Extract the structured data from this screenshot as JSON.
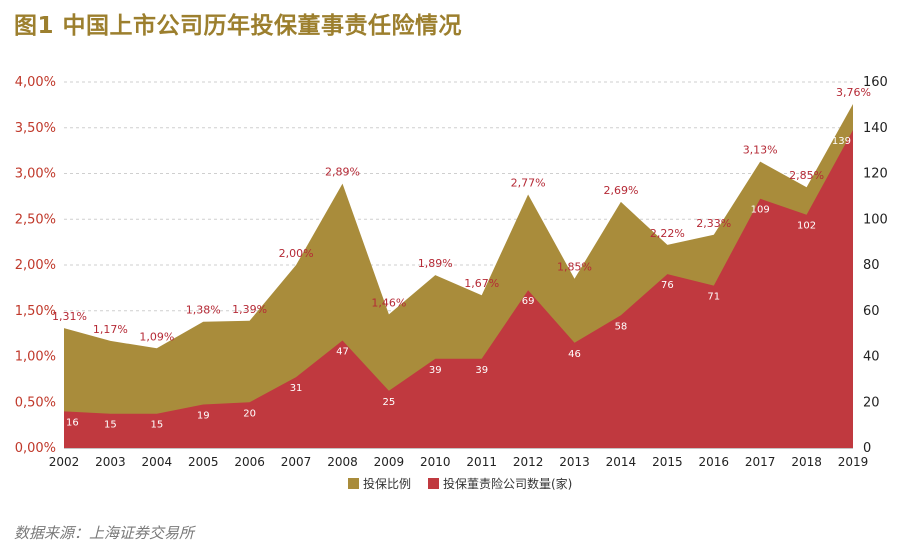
{
  "title": "图1 中国上市公司历年投保董事责任险情况",
  "source": "数据来源：上海证券交易所",
  "colors": {
    "ratio": "#a98c3b",
    "count": "#c0393f",
    "ratio_label": "#b52a36",
    "count_label": "#ffffff",
    "title": "#9c7f2e"
  },
  "chart_data": {
    "type": "area",
    "title": "图1 中国上市公司历年投保董事责任险情况",
    "x": [
      "2002",
      "2003",
      "2004",
      "2005",
      "2006",
      "2007",
      "2008",
      "2009",
      "2010",
      "2011",
      "2012",
      "2013",
      "2014",
      "2015",
      "2016",
      "2017",
      "2018",
      "2019"
    ],
    "series": [
      {
        "name": "投保比例",
        "axis": "left",
        "values": [
          1.31,
          1.17,
          1.09,
          1.38,
          1.39,
          2.0,
          2.89,
          1.46,
          1.89,
          1.67,
          2.77,
          1.85,
          2.69,
          2.22,
          2.33,
          3.13,
          2.85,
          3.76
        ],
        "labels": [
          "1,31%",
          "1,17%",
          "1,09%",
          "1,38%",
          "1,39%",
          "2,00%",
          "2,89%",
          "1,46%",
          "1,89%",
          "1,67%",
          "2,77%",
          "1,85%",
          "2,69%",
          "2,22%",
          "2,33%",
          "3,13%",
          "2,85%",
          "3,76%"
        ]
      },
      {
        "name": "投保董责险公司数量(家)",
        "axis": "right",
        "values": [
          16,
          15,
          15,
          19,
          20,
          31,
          47,
          25,
          39,
          39,
          69,
          46,
          58,
          76,
          71,
          109,
          102,
          139
        ],
        "labels": [
          "16",
          "15",
          "15",
          "19",
          "20",
          "31",
          "47",
          "25",
          "39",
          "39",
          "69",
          "46",
          "58",
          "76",
          "71",
          "109",
          "102",
          "139"
        ]
      }
    ],
    "y_left": {
      "min": 0,
      "max": 4.0,
      "ticks": [
        "0,00%",
        "0,50%",
        "1,00%",
        "1,50%",
        "2,00%",
        "2,50%",
        "3,00%",
        "3,50%",
        "4,00%"
      ]
    },
    "y_right": {
      "min": 0,
      "max": 160,
      "ticks": [
        "0",
        "20",
        "40",
        "60",
        "80",
        "100",
        "120",
        "140",
        "160"
      ]
    },
    "grid": true,
    "legend": "bottom-center"
  }
}
